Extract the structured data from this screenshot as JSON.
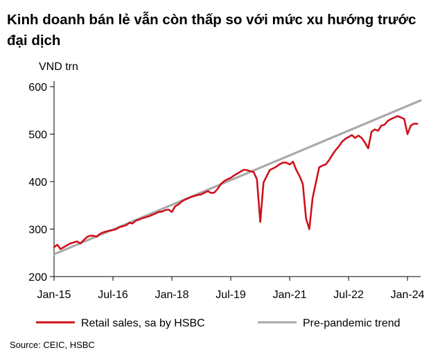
{
  "title": "Kinh doanh bán lẻ vẫn còn thấp so với mức xu hướng trước đại dịch",
  "unit_label": "VND trn",
  "source": "Source: CEIC, HSBC",
  "colors": {
    "retail": "#d0101b",
    "trend": "#a9a9a9",
    "axis": "#000000"
  },
  "chart_data": {
    "type": "line",
    "title": "Kinh doanh bán lẻ vẫn còn thấp so với mức xu hướng trước đại dịch",
    "ylabel": "VND trn",
    "ylim": [
      200,
      600
    ],
    "yticks": [
      200,
      300,
      400,
      500,
      600
    ],
    "xlim": [
      "2015-01",
      "2024-05"
    ],
    "xticks": [
      {
        "label": "Jan-15",
        "date": "2015-01"
      },
      {
        "label": "Jul-16",
        "date": "2016-07"
      },
      {
        "label": "Jan-18",
        "date": "2018-01"
      },
      {
        "label": "Jul-19",
        "date": "2019-07"
      },
      {
        "label": "Jan-21",
        "date": "2021-01"
      },
      {
        "label": "Jul-22",
        "date": "2022-07"
      },
      {
        "label": "Jan-24",
        "date": "2024-01"
      }
    ],
    "legend_position": "bottom",
    "series": [
      {
        "name": "Retail sales, sa by HSBC",
        "color": "#d0101b",
        "points": [
          [
            "2015-01",
            262
          ],
          [
            "2015-02",
            267
          ],
          [
            "2015-03",
            258
          ],
          [
            "2015-04",
            262
          ],
          [
            "2015-05",
            266
          ],
          [
            "2015-06",
            270
          ],
          [
            "2015-07",
            272
          ],
          [
            "2015-08",
            274
          ],
          [
            "2015-09",
            270
          ],
          [
            "2015-10",
            276
          ],
          [
            "2015-11",
            283
          ],
          [
            "2015-12",
            286
          ],
          [
            "2016-01",
            286
          ],
          [
            "2016-02",
            284
          ],
          [
            "2016-03",
            290
          ],
          [
            "2016-04",
            293
          ],
          [
            "2016-05",
            295
          ],
          [
            "2016-06",
            297
          ],
          [
            "2016-07",
            298
          ],
          [
            "2016-08",
            300
          ],
          [
            "2016-09",
            304
          ],
          [
            "2016-10",
            306
          ],
          [
            "2016-11",
            308
          ],
          [
            "2016-12",
            313
          ],
          [
            "2017-01",
            312
          ],
          [
            "2017-02",
            318
          ],
          [
            "2017-03",
            320
          ],
          [
            "2017-04",
            323
          ],
          [
            "2017-05",
            325
          ],
          [
            "2017-06",
            327
          ],
          [
            "2017-07",
            330
          ],
          [
            "2017-08",
            333
          ],
          [
            "2017-09",
            336
          ],
          [
            "2017-10",
            337
          ],
          [
            "2017-11",
            340
          ],
          [
            "2017-12",
            341
          ],
          [
            "2018-01",
            336
          ],
          [
            "2018-02",
            348
          ],
          [
            "2018-03",
            352
          ],
          [
            "2018-04",
            358
          ],
          [
            "2018-05",
            362
          ],
          [
            "2018-06",
            365
          ],
          [
            "2018-07",
            368
          ],
          [
            "2018-08",
            370
          ],
          [
            "2018-09",
            372
          ],
          [
            "2018-10",
            373
          ],
          [
            "2018-11",
            377
          ],
          [
            "2018-12",
            380
          ],
          [
            "2019-01",
            376
          ],
          [
            "2019-02",
            377
          ],
          [
            "2019-03",
            385
          ],
          [
            "2019-04",
            395
          ],
          [
            "2019-05",
            401
          ],
          [
            "2019-06",
            405
          ],
          [
            "2019-07",
            408
          ],
          [
            "2019-08",
            413
          ],
          [
            "2019-09",
            417
          ],
          [
            "2019-10",
            421
          ],
          [
            "2019-11",
            425
          ],
          [
            "2019-12",
            424
          ],
          [
            "2020-01",
            422
          ],
          [
            "2020-02",
            420
          ],
          [
            "2020-03",
            405
          ],
          [
            "2020-04",
            315
          ],
          [
            "2020-05",
            398
          ],
          [
            "2020-06",
            412
          ],
          [
            "2020-07",
            425
          ],
          [
            "2020-08",
            428
          ],
          [
            "2020-09",
            432
          ],
          [
            "2020-10",
            437
          ],
          [
            "2020-11",
            440
          ],
          [
            "2020-12",
            440
          ],
          [
            "2021-01",
            436
          ],
          [
            "2021-02",
            442
          ],
          [
            "2021-03",
            425
          ],
          [
            "2021-04",
            412
          ],
          [
            "2021-05",
            395
          ],
          [
            "2021-06",
            322
          ],
          [
            "2021-07",
            300
          ],
          [
            "2021-08",
            365
          ],
          [
            "2021-09",
            398
          ],
          [
            "2021-10",
            430
          ],
          [
            "2021-11",
            434
          ],
          [
            "2021-12",
            436
          ],
          [
            "2022-01",
            445
          ],
          [
            "2022-02",
            456
          ],
          [
            "2022-03",
            466
          ],
          [
            "2022-04",
            474
          ],
          [
            "2022-05",
            484
          ],
          [
            "2022-06",
            490
          ],
          [
            "2022-07",
            494
          ],
          [
            "2022-08",
            498
          ],
          [
            "2022-09",
            492
          ],
          [
            "2022-10",
            497
          ],
          [
            "2022-11",
            492
          ],
          [
            "2022-12",
            482
          ],
          [
            "2023-01",
            470
          ],
          [
            "2023-02",
            505
          ],
          [
            "2023-03",
            510
          ],
          [
            "2023-04",
            507
          ],
          [
            "2023-05",
            518
          ],
          [
            "2023-06",
            520
          ],
          [
            "2023-07",
            528
          ],
          [
            "2023-08",
            532
          ],
          [
            "2023-09",
            535
          ],
          [
            "2023-10",
            538
          ],
          [
            "2023-11",
            535
          ],
          [
            "2023-12",
            532
          ],
          [
            "2024-01",
            500
          ],
          [
            "2024-02",
            518
          ],
          [
            "2024-03",
            522
          ],
          [
            "2024-04",
            522
          ]
        ]
      },
      {
        "name": "Pre-pandemic trend",
        "color": "#a9a9a9",
        "points": [
          [
            "2015-01",
            247
          ],
          [
            "2024-05",
            571
          ]
        ]
      }
    ]
  }
}
